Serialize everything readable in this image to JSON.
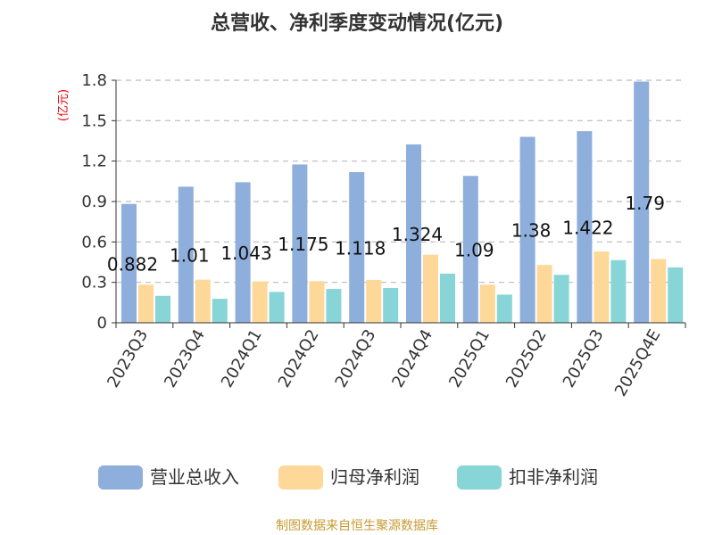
{
  "chart_data": {
    "type": "bar",
    "title": "总营收、净利季度变动情况(亿元)",
    "ylabel": "(亿元)",
    "ylim": [
      0,
      1.8
    ],
    "yticks": [
      "0",
      "0.3",
      "0.6",
      "0.9",
      "1.2",
      "1.5",
      "1.8"
    ],
    "grid": true,
    "legend_position": "bottom",
    "categories": [
      "2023Q3",
      "2023Q4",
      "2024Q1",
      "2024Q2",
      "2024Q3",
      "2024Q4",
      "2025Q1",
      "2025Q2",
      "2025Q3",
      "2025Q4E"
    ],
    "series": [
      {
        "name": "营业总收入",
        "color": "#8eaedb",
        "values": [
          0.882,
          1.01,
          1.043,
          1.175,
          1.118,
          1.324,
          1.09,
          1.38,
          1.422,
          1.79
        ],
        "labels": [
          "0.882",
          "1.01",
          "1.043",
          "1.175",
          "1.118",
          "1.324",
          "1.09",
          "1.38",
          "1.422",
          "1.79"
        ]
      },
      {
        "name": "归母净利润",
        "color": "#fdd898",
        "values": [
          0.283,
          0.32,
          0.307,
          0.309,
          0.318,
          0.505,
          0.283,
          0.429,
          0.529,
          0.473
        ]
      },
      {
        "name": "扣非净利润",
        "color": "#88d5d8",
        "values": [
          0.2,
          0.178,
          0.229,
          0.251,
          0.258,
          0.365,
          0.209,
          0.356,
          0.465,
          0.411
        ]
      }
    ]
  },
  "footer": "制图数据来自恒生聚源数据库"
}
